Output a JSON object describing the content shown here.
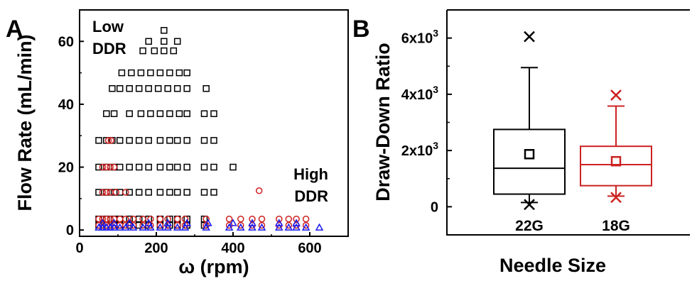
{
  "chart_data": [
    {
      "panel": "A",
      "type": "scatter",
      "xlabel": "ω (rpm)",
      "ylabel": "Flow Rate (mL/min)",
      "xlim": [
        0,
        700
      ],
      "ylim": [
        -2,
        70
      ],
      "xticks": [
        0,
        200,
        400,
        600
      ],
      "yticks": [
        0,
        20,
        40,
        60
      ],
      "annotations": [
        {
          "lines": [
            "Low",
            "DDR"
          ]
        },
        {
          "lines": [
            "High",
            "DDR"
          ]
        }
      ],
      "series": [
        {
          "marker": "square",
          "color": "#000000",
          "points": [
            [
              220,
              63.5
            ],
            [
              180,
              60
            ],
            [
              220,
              60
            ],
            [
              255,
              60
            ],
            [
              165,
              57
            ],
            [
              195,
              57
            ],
            [
              220,
              57
            ],
            [
              245,
              57
            ],
            [
              110,
              50
            ],
            [
              135,
              50
            ],
            [
              160,
              50
            ],
            [
              185,
              50
            ],
            [
              210,
              50
            ],
            [
              235,
              50
            ],
            [
              260,
              50
            ],
            [
              280,
              50
            ],
            [
              85,
              45
            ],
            [
              105,
              45
            ],
            [
              130,
              45
            ],
            [
              155,
              45
            ],
            [
              180,
              45
            ],
            [
              205,
              45
            ],
            [
              230,
              45
            ],
            [
              255,
              45
            ],
            [
              280,
              45
            ],
            [
              330,
              45
            ],
            [
              70,
              37
            ],
            [
              90,
              37
            ],
            [
              130,
              37
            ],
            [
              160,
              37
            ],
            [
              185,
              37
            ],
            [
              210,
              37
            ],
            [
              235,
              37
            ],
            [
              260,
              37
            ],
            [
              280,
              37
            ],
            [
              325,
              37
            ],
            [
              350,
              37
            ],
            [
              50,
              28.5
            ],
            [
              70,
              28.5
            ],
            [
              85,
              28.5
            ],
            [
              105,
              28.5
            ],
            [
              130,
              28.5
            ],
            [
              155,
              28.5
            ],
            [
              180,
              28.5
            ],
            [
              210,
              28.5
            ],
            [
              235,
              28.5
            ],
            [
              255,
              28.5
            ],
            [
              280,
              28.5
            ],
            [
              325,
              28.5
            ],
            [
              350,
              28.5
            ],
            [
              50,
              20
            ],
            [
              70,
              20
            ],
            [
              90,
              20
            ],
            [
              105,
              20
            ],
            [
              130,
              20
            ],
            [
              155,
              20
            ],
            [
              180,
              20
            ],
            [
              210,
              20
            ],
            [
              235,
              20
            ],
            [
              255,
              20
            ],
            [
              280,
              20
            ],
            [
              325,
              20
            ],
            [
              350,
              20
            ],
            [
              400,
              20
            ],
            [
              50,
              12
            ],
            [
              70,
              12
            ],
            [
              90,
              12
            ],
            [
              105,
              12
            ],
            [
              130,
              12
            ],
            [
              155,
              12
            ],
            [
              180,
              12
            ],
            [
              210,
              12
            ],
            [
              235,
              12
            ],
            [
              255,
              12
            ],
            [
              280,
              12
            ],
            [
              325,
              12
            ],
            [
              350,
              12
            ],
            [
              50,
              3.5
            ],
            [
              70,
              3.5
            ],
            [
              90,
              3.5
            ],
            [
              105,
              3.5
            ],
            [
              130,
              3.5
            ],
            [
              155,
              3.5
            ],
            [
              180,
              3.5
            ],
            [
              210,
              3.5
            ],
            [
              235,
              3.5
            ],
            [
              255,
              3.5
            ],
            [
              280,
              3.5
            ],
            [
              325,
              3.5
            ],
            [
              50,
              1.5
            ],
            [
              70,
              1.5
            ],
            [
              90,
              1.5
            ],
            [
              105,
              1.5
            ],
            [
              130,
              1.5
            ],
            [
              155,
              1.5
            ],
            [
              180,
              1.5
            ],
            [
              210,
              1.5
            ],
            [
              235,
              1.5
            ],
            [
              255,
              1.5
            ],
            [
              280,
              1.5
            ],
            [
              325,
              1.5
            ]
          ]
        },
        {
          "marker": "circle",
          "color": "#cc2222",
          "points": [
            [
              75,
              28.5
            ],
            [
              82,
              28.5
            ],
            [
              60,
              20
            ],
            [
              70,
              20
            ],
            [
              80,
              20
            ],
            [
              90,
              20
            ],
            [
              60,
              12
            ],
            [
              70,
              12
            ],
            [
              80,
              12
            ],
            [
              95,
              12
            ],
            [
              120,
              12
            ],
            [
              468,
              12.5
            ],
            [
              50,
              3.5
            ],
            [
              60,
              3.5
            ],
            [
              70,
              3.5
            ],
            [
              80,
              3.5
            ],
            [
              90,
              3.5
            ],
            [
              105,
              3.5
            ],
            [
              120,
              3.5
            ],
            [
              140,
              3.5
            ],
            [
              165,
              3.5
            ],
            [
              185,
              3.5
            ],
            [
              210,
              3.5
            ],
            [
              230,
              3.5
            ],
            [
              255,
              3.5
            ],
            [
              275,
              3.5
            ],
            [
              330,
              3.5
            ],
            [
              390,
              3.5
            ],
            [
              420,
              3.5
            ],
            [
              450,
              3.5
            ],
            [
              475,
              3.5
            ],
            [
              520,
              3.5
            ],
            [
              545,
              3.5
            ],
            [
              565,
              3.5
            ],
            [
              590,
              3.5
            ],
            [
              50,
              1.5
            ],
            [
              60,
              1.5
            ],
            [
              70,
              1.5
            ],
            [
              80,
              1.5
            ],
            [
              90,
              1.5
            ],
            [
              105,
              1.5
            ],
            [
              120,
              1.5
            ],
            [
              140,
              1.5
            ],
            [
              165,
              1.5
            ],
            [
              185,
              1.5
            ],
            [
              210,
              1.5
            ],
            [
              230,
              1.5
            ],
            [
              255,
              1.5
            ],
            [
              275,
              1.5
            ],
            [
              330,
              1.5
            ],
            [
              390,
              1.5
            ],
            [
              420,
              1.5
            ],
            [
              450,
              1.5
            ],
            [
              475,
              1.5
            ],
            [
              520,
              1.5
            ],
            [
              545,
              1.5
            ],
            [
              565,
              1.5
            ],
            [
              590,
              1.5
            ]
          ]
        },
        {
          "marker": "triangle",
          "color": "#1a1aee",
          "points": [
            [
              50,
              0.8
            ],
            [
              60,
              0.8
            ],
            [
              70,
              0.8
            ],
            [
              80,
              0.8
            ],
            [
              90,
              0.8
            ],
            [
              105,
              0.8
            ],
            [
              120,
              0.8
            ],
            [
              140,
              0.8
            ],
            [
              165,
              0.8
            ],
            [
              185,
              0.8
            ],
            [
              210,
              0.8
            ],
            [
              230,
              0.8
            ],
            [
              255,
              0.8
            ],
            [
              275,
              0.8
            ],
            [
              330,
              0.8
            ],
            [
              390,
              0.8
            ],
            [
              420,
              0.8
            ],
            [
              450,
              0.8
            ],
            [
              475,
              0.8
            ],
            [
              520,
              0.8
            ],
            [
              545,
              0.8
            ],
            [
              565,
              0.8
            ],
            [
              590,
              0.8
            ],
            [
              625,
              0.8
            ],
            [
              60,
              2.2
            ],
            [
              90,
              2.2
            ],
            [
              130,
              2.2
            ],
            [
              180,
              2.2
            ],
            [
              230,
              2.2
            ],
            [
              280,
              2.2
            ],
            [
              335,
              2.2
            ],
            [
              400,
              2.2
            ],
            [
              450,
              2.2
            ],
            [
              520,
              2.2
            ],
            [
              565,
              2.2
            ]
          ]
        }
      ]
    },
    {
      "panel": "B",
      "type": "box",
      "xlabel": "Needle Size",
      "ylabel": "Draw-Down Ratio",
      "ylim": [
        -1000,
        7000
      ],
      "yticks": [
        {
          "value": 0,
          "mantissa": "0",
          "exponent": ""
        },
        {
          "value": 2000,
          "mantissa": "2x10",
          "exponent": "3"
        },
        {
          "value": 4000,
          "mantissa": "4x10",
          "exponent": "3"
        },
        {
          "value": 6000,
          "mantissa": "6x10",
          "exponent": "3"
        }
      ],
      "categories": [
        "22G",
        "18G"
      ],
      "boxes": [
        {
          "category": "22G",
          "color": "#000000",
          "q1": 450,
          "median": 1370,
          "q3": 2750,
          "mean": 1870,
          "whisker_low": 150,
          "whisker_high": 4950,
          "min": 80,
          "max": 6050
        },
        {
          "category": "18G",
          "color": "#cc2222",
          "q1": 750,
          "median": 1500,
          "q3": 2150,
          "mean": 1620,
          "whisker_low": 380,
          "whisker_high": 3580,
          "min": 330,
          "max": 3970
        }
      ]
    }
  ],
  "panel_labels": [
    "A",
    "B"
  ]
}
